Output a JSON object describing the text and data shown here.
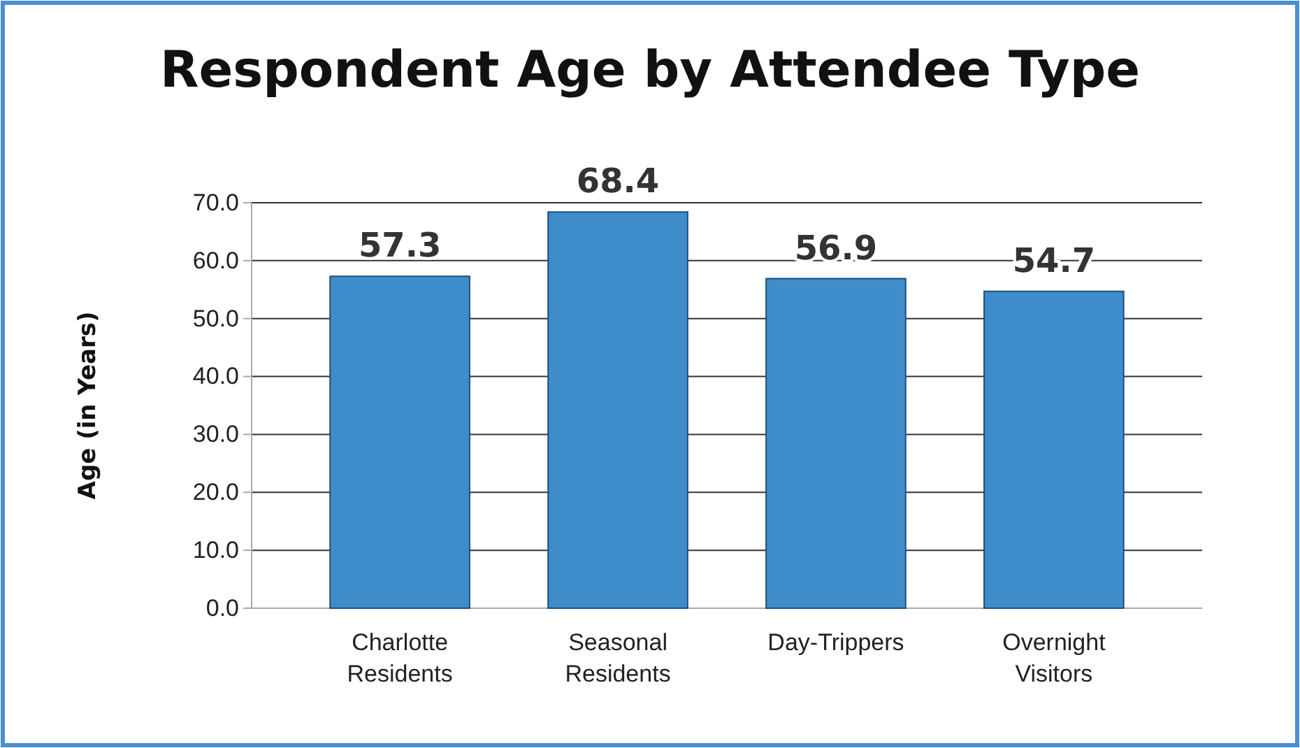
{
  "chart_data": {
    "type": "bar",
    "title": "Respondent Age by Attendee Type",
    "ylabel": "Age (in Years)",
    "categories": [
      "Charlotte Residents",
      "Seasonal Residents",
      "Day-Trippers",
      "Overnight Visitors"
    ],
    "values": [
      57.3,
      68.4,
      56.9,
      54.7
    ],
    "color": "#3f8ccb",
    "ylim": [
      0,
      70
    ],
    "yticks": [
      {
        "value": 0,
        "label": "0.0"
      },
      {
        "value": 10,
        "label": "10.0"
      },
      {
        "value": 20,
        "label": "20.0"
      },
      {
        "value": 30,
        "label": "30.0"
      },
      {
        "value": 40,
        "label": "40.0"
      },
      {
        "value": 50,
        "label": "50.0"
      },
      {
        "value": 60,
        "label": "60.0"
      },
      {
        "value": 70,
        "label": "70.0"
      }
    ],
    "grid": "y",
    "data_labels": true
  }
}
